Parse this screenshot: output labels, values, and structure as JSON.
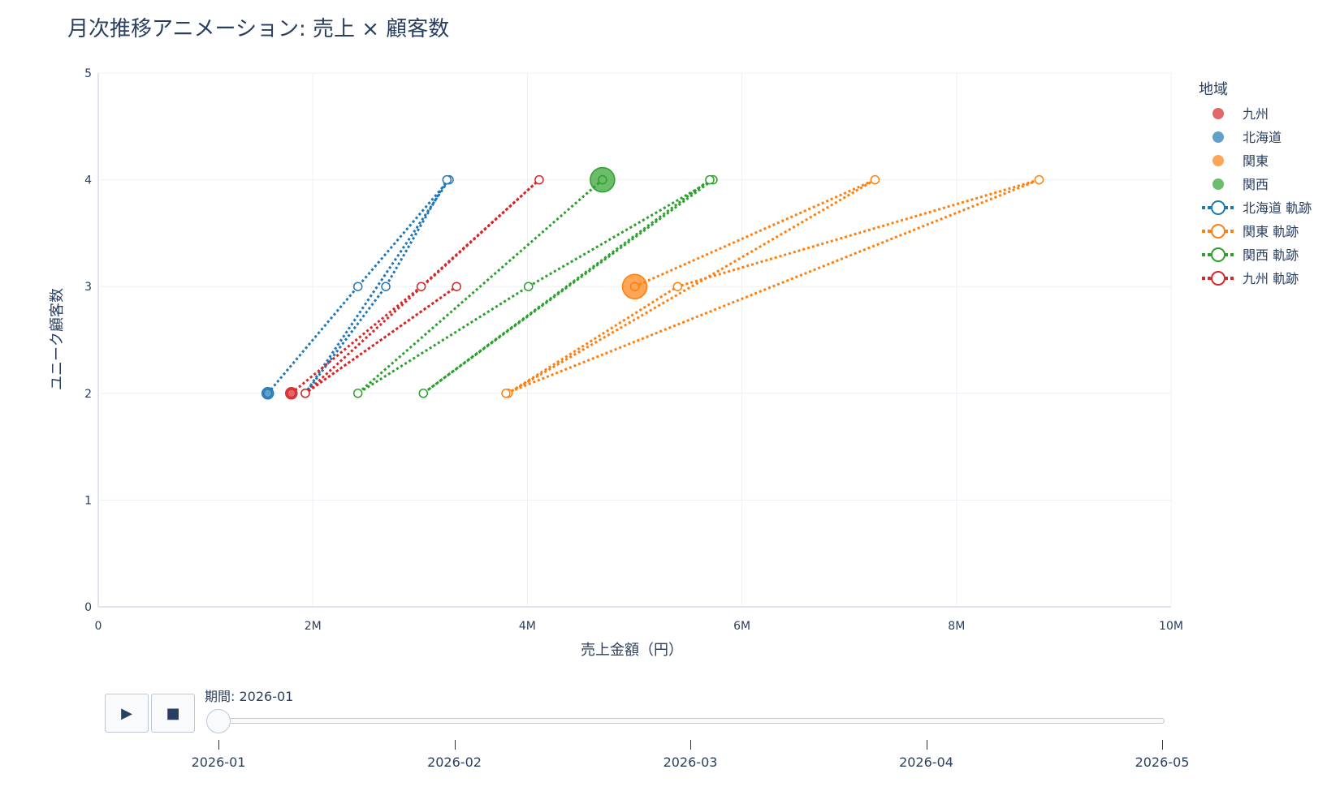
{
  "chart_data": {
    "type": "scatter",
    "title": "月次推移アニメーション: 売上 × 顧客数",
    "xlabel": "売上金額（円）",
    "ylabel": "ユニーク顧客数",
    "xlim": [
      0,
      10000000
    ],
    "ylim": [
      0,
      5
    ],
    "x_ticks": [
      0,
      2000000,
      4000000,
      6000000,
      8000000,
      10000000
    ],
    "x_tick_labels": [
      "0",
      "2M",
      "4M",
      "6M",
      "8M",
      "10M"
    ],
    "y_ticks": [
      0,
      1,
      2,
      3,
      4,
      5
    ],
    "y_tick_labels": [
      "0",
      "1",
      "2",
      "3",
      "4",
      "5"
    ],
    "grid": true,
    "legend_title": "地域",
    "legend_position": "top-right",
    "current_points": [
      {
        "name": "九州",
        "color": "#d62728",
        "x": 1800000,
        "y": 2,
        "size": "small"
      },
      {
        "name": "北海道",
        "color": "#1f77b4",
        "x": 1580000,
        "y": 2,
        "size": "small"
      },
      {
        "name": "関東",
        "color": "#ff7f0e",
        "x": 5000000,
        "y": 3,
        "size": "large"
      },
      {
        "name": "関西",
        "color": "#2ca02c",
        "x": 4700000,
        "y": 4,
        "size": "large"
      }
    ],
    "trails": [
      {
        "name": "北海道 軌跡",
        "color": "#1f77b4",
        "points": [
          [
            1580000,
            2
          ],
          [
            2420000,
            3
          ],
          [
            3270000,
            4
          ],
          [
            1930000,
            2
          ],
          [
            2680000,
            3
          ],
          [
            3250000,
            4
          ]
        ]
      },
      {
        "name": "関東 軌跡",
        "color": "#ff7f0e",
        "points": [
          [
            5000000,
            3
          ],
          [
            7240000,
            4
          ],
          [
            3820000,
            2
          ],
          [
            5400000,
            3
          ],
          [
            8770000,
            4
          ],
          [
            3800000,
            2
          ]
        ]
      },
      {
        "name": "関西 軌跡",
        "color": "#2ca02c",
        "points": [
          [
            4700000,
            4
          ],
          [
            2420000,
            2
          ],
          [
            4010000,
            3
          ],
          [
            5730000,
            4
          ],
          [
            3030000,
            2
          ],
          [
            5700000,
            4
          ]
        ]
      },
      {
        "name": "九州 軌跡",
        "color": "#d62728",
        "points": [
          [
            1800000,
            2
          ],
          [
            3010000,
            3
          ],
          [
            4110000,
            4
          ],
          [
            1930000,
            2
          ],
          [
            3340000,
            3
          ],
          [
            1930000,
            2
          ]
        ]
      }
    ]
  },
  "slider": {
    "label": "期間: 2026-01",
    "current_index": 0,
    "steps": [
      "2026-01",
      "2026-02",
      "2026-03",
      "2026-04",
      "2026-05"
    ]
  },
  "controls": {
    "play_icon": "▶",
    "stop_icon": "■"
  }
}
